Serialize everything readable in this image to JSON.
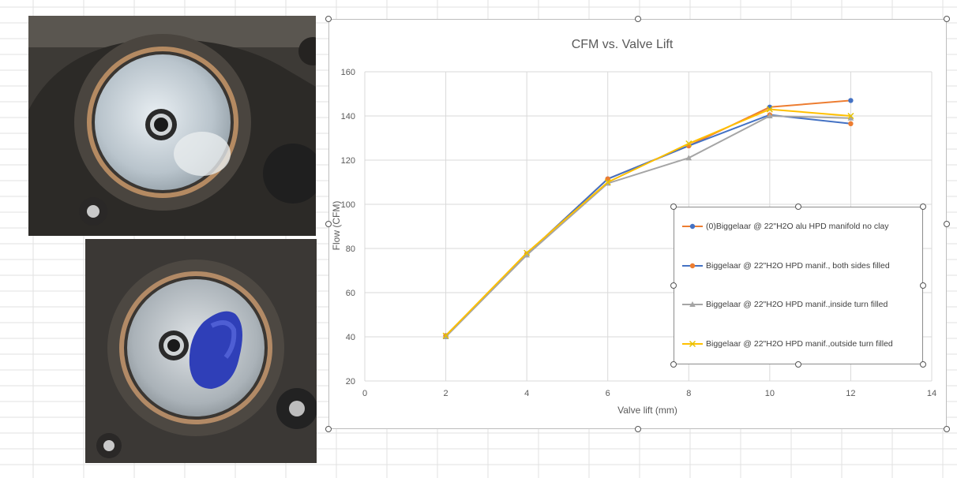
{
  "chart_data": {
    "type": "line",
    "title": "CFM vs. Valve Lift",
    "xlabel": "Valve lift (mm)",
    "ylabel": "Flow (CFM)",
    "xlim": [
      0,
      14
    ],
    "ylim": [
      20,
      160
    ],
    "xticks": [
      0,
      2,
      4,
      6,
      8,
      10,
      12,
      14
    ],
    "yticks": [
      20,
      40,
      60,
      80,
      100,
      120,
      140,
      160
    ],
    "grid": true,
    "legend_position": "right",
    "x": [
      2,
      4,
      6,
      8,
      10,
      12
    ],
    "series": [
      {
        "name": "(0)Biggelaar @ 22\"H2O alu HPD manifold no clay",
        "line_color": "#ed7d31",
        "marker": "circle",
        "marker_color": "#4472c4",
        "values": [
          40.5,
          77.5,
          111.5,
          126.5,
          144,
          147
        ]
      },
      {
        "name": "Biggelaar @ 22\"H2O HPD manif., both sides filled",
        "line_color": "#4472c4",
        "marker": "circle",
        "marker_color": "#ed7d31",
        "values": [
          40.5,
          77.5,
          111.5,
          126.5,
          140.5,
          136.5
        ]
      },
      {
        "name": "Biggelaar @ 22\"H2O HPD manif.,inside turn filled",
        "line_color": "#a5a5a5",
        "marker": "triangle",
        "marker_color": "#a5a5a5",
        "values": [
          40,
          77,
          109.5,
          121,
          140,
          139
        ]
      },
      {
        "name": "Biggelaar @ 22\"H2O HPD manif.,outside turn filled",
        "line_color": "#ffc000",
        "marker": "x",
        "marker_color": "#e5c100",
        "values": [
          40.5,
          78,
          110,
          127.5,
          143,
          140
        ]
      }
    ]
  }
}
